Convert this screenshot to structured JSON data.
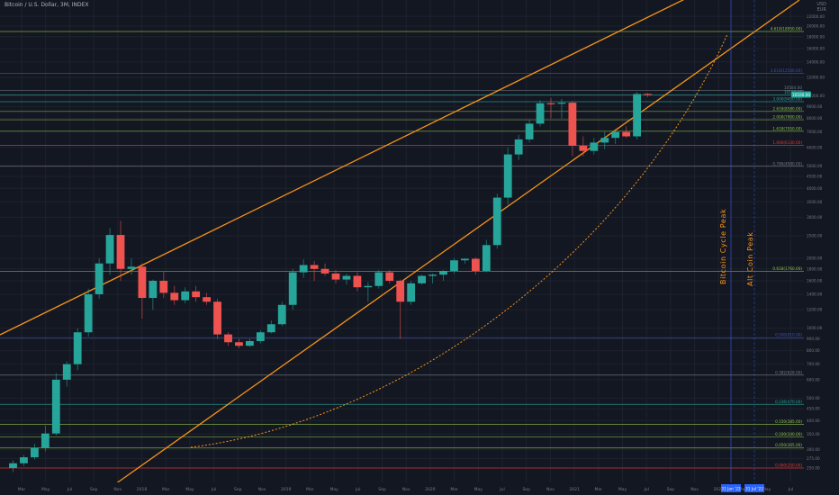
{
  "header": {
    "title": "Bitcoin / U.S. Dollar, 3M, INDEX",
    "currency_top": "USD",
    "currency_bottom": "EUR"
  },
  "colors": {
    "background": "#131722",
    "bull": "#26a69a",
    "bear": "#ef5350",
    "trend": "#f7931a",
    "fib_green": "#8bc34a",
    "fib_teal": "#26a69a",
    "fib_blue": "#3f51b5",
    "fib_red": "#e53935",
    "fib_gray": "#787b86"
  },
  "annotations": {
    "bitcoin_cycle_peak": "Bitcoin Cycle Peak",
    "alt_coin_peak": "Alt Coin Peak",
    "marker_1": "31 Jan '22",
    "marker_2": "31 Jul '22"
  },
  "chart_data": {
    "type": "candlestick",
    "title": "Bitcoin / U.S. Dollar, 3M, INDEX",
    "y_scale": "log",
    "ylim": [
      235,
      23000
    ],
    "xlim": [
      "2017-03",
      "2022-11"
    ],
    "price_labels": [
      "22000.00",
      "20000.00",
      "18000.00",
      "16000.00",
      "14000.00",
      "12000.00",
      "10000.00",
      "9000.00",
      "8000.00",
      "7000.00",
      "6000.00",
      "5000.00",
      "4500.00",
      "4000.00",
      "3500.00",
      "3000.00",
      "2500.00",
      "2000.00",
      "1800.00",
      "1600.00",
      "1400.00",
      "1200.00",
      "1000.00",
      "900.00",
      "800.00",
      "700.00",
      "600.00",
      "500.00",
      "450.00",
      "400.00",
      "350.00",
      "300.00",
      "275.00",
      "250.00"
    ],
    "x_labels": [
      "Mar",
      "May",
      "Jul",
      "Sep",
      "Nov",
      "2018",
      "Mar",
      "May",
      "Jul",
      "Sep",
      "Nov",
      "2019",
      "Mar",
      "May",
      "Jul",
      "Sep",
      "Nov",
      "2020",
      "Mar",
      "May",
      "Jul",
      "Sep",
      "Nov",
      "2021",
      "Mar",
      "May",
      "Jul",
      "Sep",
      "Nov",
      "2022",
      "Mar",
      "May",
      "Jul",
      "Sep",
      "Nov"
    ],
    "candles": [
      {
        "o": 250,
        "h": 270,
        "l": 240,
        "c": 262
      },
      {
        "o": 262,
        "h": 285,
        "l": 255,
        "c": 278
      },
      {
        "o": 278,
        "h": 318,
        "l": 272,
        "c": 306
      },
      {
        "o": 306,
        "h": 380,
        "l": 295,
        "c": 352
      },
      {
        "o": 352,
        "h": 640,
        "l": 345,
        "c": 600
      },
      {
        "o": 600,
        "h": 720,
        "l": 560,
        "c": 700
      },
      {
        "o": 700,
        "h": 1000,
        "l": 660,
        "c": 960
      },
      {
        "o": 960,
        "h": 1480,
        "l": 920,
        "c": 1400
      },
      {
        "o": 1400,
        "h": 2000,
        "l": 1340,
        "c": 1900
      },
      {
        "o": 1900,
        "h": 2700,
        "l": 1700,
        "c": 2520
      },
      {
        "o": 2520,
        "h": 2900,
        "l": 1600,
        "c": 1800
      },
      {
        "o": 1800,
        "h": 2000,
        "l": 1700,
        "c": 1840
      },
      {
        "o": 1840,
        "h": 1900,
        "l": 1100,
        "c": 1350
      },
      {
        "o": 1350,
        "h": 1620,
        "l": 1200,
        "c": 1600
      },
      {
        "o": 1600,
        "h": 1750,
        "l": 1350,
        "c": 1420
      },
      {
        "o": 1420,
        "h": 1520,
        "l": 1260,
        "c": 1320
      },
      {
        "o": 1320,
        "h": 1500,
        "l": 1280,
        "c": 1440
      },
      {
        "o": 1440,
        "h": 1520,
        "l": 1300,
        "c": 1360
      },
      {
        "o": 1360,
        "h": 1420,
        "l": 1260,
        "c": 1300
      },
      {
        "o": 1300,
        "h": 1340,
        "l": 900,
        "c": 940
      },
      {
        "o": 940,
        "h": 960,
        "l": 840,
        "c": 870
      },
      {
        "o": 870,
        "h": 900,
        "l": 820,
        "c": 840
      },
      {
        "o": 840,
        "h": 900,
        "l": 830,
        "c": 880
      },
      {
        "o": 880,
        "h": 980,
        "l": 860,
        "c": 960
      },
      {
        "o": 960,
        "h": 1080,
        "l": 950,
        "c": 1040
      },
      {
        "o": 1040,
        "h": 1300,
        "l": 1020,
        "c": 1260
      },
      {
        "o": 1260,
        "h": 1800,
        "l": 1200,
        "c": 1740
      },
      {
        "o": 1740,
        "h": 1980,
        "l": 1650,
        "c": 1870
      },
      {
        "o": 1870,
        "h": 1950,
        "l": 1600,
        "c": 1800
      },
      {
        "o": 1800,
        "h": 1900,
        "l": 1680,
        "c": 1720
      },
      {
        "o": 1720,
        "h": 1780,
        "l": 1560,
        "c": 1620
      },
      {
        "o": 1620,
        "h": 1720,
        "l": 1540,
        "c": 1680
      },
      {
        "o": 1680,
        "h": 1740,
        "l": 1440,
        "c": 1500
      },
      {
        "o": 1500,
        "h": 1580,
        "l": 1300,
        "c": 1520
      },
      {
        "o": 1520,
        "h": 1780,
        "l": 1480,
        "c": 1740
      },
      {
        "o": 1740,
        "h": 1780,
        "l": 1560,
        "c": 1600
      },
      {
        "o": 1600,
        "h": 1620,
        "l": 900,
        "c": 1300
      },
      {
        "o": 1300,
        "h": 1600,
        "l": 1260,
        "c": 1560
      },
      {
        "o": 1560,
        "h": 1700,
        "l": 1540,
        "c": 1680
      },
      {
        "o": 1680,
        "h": 1720,
        "l": 1560,
        "c": 1700
      },
      {
        "o": 1700,
        "h": 1780,
        "l": 1600,
        "c": 1760
      },
      {
        "o": 1760,
        "h": 2000,
        "l": 1720,
        "c": 1960
      },
      {
        "o": 1960,
        "h": 2000,
        "l": 1900,
        "c": 1990
      },
      {
        "o": 1990,
        "h": 2020,
        "l": 1700,
        "c": 1760
      },
      {
        "o": 1760,
        "h": 2400,
        "l": 1740,
        "c": 2280
      },
      {
        "o": 2280,
        "h": 3800,
        "l": 2200,
        "c": 3650
      },
      {
        "o": 3650,
        "h": 6000,
        "l": 3400,
        "c": 5600
      },
      {
        "o": 5600,
        "h": 6800,
        "l": 5300,
        "c": 6500
      },
      {
        "o": 6500,
        "h": 7900,
        "l": 6300,
        "c": 7600
      },
      {
        "o": 7600,
        "h": 9600,
        "l": 7400,
        "c": 9300
      },
      {
        "o": 9300,
        "h": 9800,
        "l": 8000,
        "c": 9250
      },
      {
        "o": 9250,
        "h": 9700,
        "l": 8000,
        "c": 9350
      },
      {
        "o": 9350,
        "h": 9500,
        "l": 5500,
        "c": 6100
      },
      {
        "o": 6100,
        "h": 6700,
        "l": 5500,
        "c": 5800
      },
      {
        "o": 5800,
        "h": 6600,
        "l": 5600,
        "c": 6300
      },
      {
        "o": 6300,
        "h": 7000,
        "l": 5900,
        "c": 6600
      },
      {
        "o": 6600,
        "h": 7200,
        "l": 6200,
        "c": 7000
      },
      {
        "o": 7000,
        "h": 7400,
        "l": 6600,
        "c": 6700
      },
      {
        "o": 6700,
        "h": 10400,
        "l": 6500,
        "c": 10200
      },
      {
        "o": 10200,
        "h": 10300,
        "l": 9900,
        "c": 10100
      }
    ],
    "levels": [
      {
        "value": 18950,
        "label": "4.618(18950.00)",
        "color": "fib_green"
      },
      {
        "value": 12500,
        "label": "3.618(12500.00)",
        "color": "fib_blue"
      },
      {
        "value": 10580,
        "label": "10584.00",
        "color": "fib_gray"
      },
      {
        "value": 10100,
        "label": "10100.00",
        "color": "fib_teal"
      },
      {
        "value": 9450,
        "label": "3.000(9450.00)",
        "color": "fib_teal"
      },
      {
        "value": 8580,
        "label": "2.618(8580.00)",
        "color": "fib_green"
      },
      {
        "value": 7900,
        "label": "2.000(7900.00)",
        "color": "fib_green"
      },
      {
        "value": 7050,
        "label": "1.618(7050.00)",
        "color": "fib_green"
      },
      {
        "value": 6130,
        "label": "1.000(6130.00)",
        "color": "fib_red"
      },
      {
        "value": 4980,
        "label": "0.786(4980.00)",
        "color": "fib_gray"
      },
      {
        "value": 1760,
        "label": "0.618(1760.00)",
        "color": "fib_green"
      },
      {
        "value": 910,
        "label": "0.500(910.00)",
        "color": "fib_blue"
      },
      {
        "value": 628,
        "label": "0.382(628.00)",
        "color": "fib_gray"
      },
      {
        "value": 470,
        "label": "0.236(470.00)",
        "color": "fib_teal"
      },
      {
        "value": 385,
        "label": "0.150(385.00)",
        "color": "fib_green"
      },
      {
        "value": 340,
        "label": "0.100(340.00)",
        "color": "fib_green"
      },
      {
        "value": 305,
        "label": "0.050(305.00)",
        "color": "fib_green"
      },
      {
        "value": 250,
        "label": "0.000(250.00)",
        "color": "fib_red"
      }
    ],
    "last_price": {
      "value": 10100,
      "label": "10100.00"
    }
  }
}
